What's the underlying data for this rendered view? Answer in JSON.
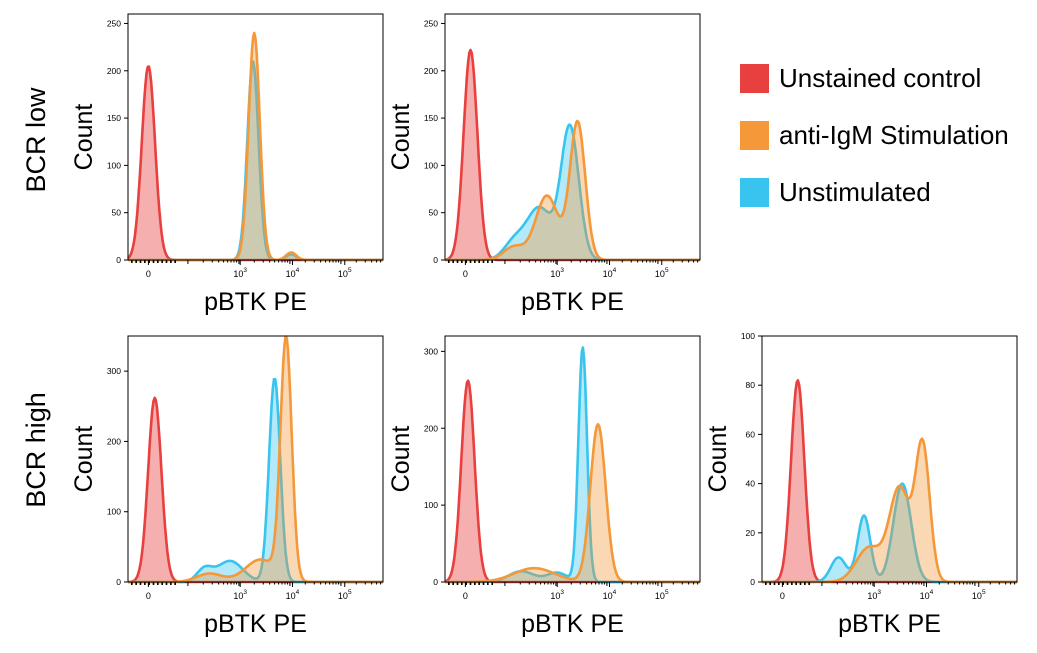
{
  "colors": {
    "unstained": "#e8403e",
    "stim": "#f4983a",
    "unstim": "#38c4ef",
    "axis": "#000000"
  },
  "legend": [
    {
      "label": "Unstained control",
      "color": "#e8403e"
    },
    {
      "label": "anti-IgM Stimulation",
      "color": "#f4983a"
    },
    {
      "label": "Unstimulated",
      "color": "#38c4ef"
    }
  ],
  "row_labels": [
    "BCR low",
    "BCR high"
  ],
  "chart_data": [
    {
      "type": "area",
      "row": 0,
      "col": 0,
      "xlabel": "pBTK PE",
      "ylabel": "Count",
      "ylim": [
        0,
        260
      ],
      "yticks": [
        0,
        50,
        100,
        150,
        200,
        250
      ],
      "xticks": [
        "0",
        "10^3",
        "10^4",
        "10^5"
      ],
      "series": [
        {
          "name": "Unstained control",
          "peaks": [
            {
              "center": 0.08,
              "height": 205,
              "width": 0.026
            }
          ]
        },
        {
          "name": "anti-IgM Stimulation",
          "peaks": [
            {
              "center": 0.495,
              "height": 240,
              "width": 0.022
            },
            {
              "center": 0.64,
              "height": 8,
              "width": 0.02
            }
          ]
        },
        {
          "name": "Unstimulated",
          "peaks": [
            {
              "center": 0.49,
              "height": 210,
              "width": 0.022
            },
            {
              "center": 0.64,
              "height": 6,
              "width": 0.02
            }
          ]
        }
      ]
    },
    {
      "type": "area",
      "row": 0,
      "col": 1,
      "xlabel": "pBTK PE",
      "ylabel": "Count",
      "ylim": [
        0,
        260
      ],
      "yticks": [
        0,
        50,
        100,
        150,
        200,
        250
      ],
      "xticks": [
        "0",
        "10^3",
        "10^4",
        "10^5"
      ],
      "series": [
        {
          "name": "Unstained control",
          "peaks": [
            {
              "center": 0.1,
              "height": 222,
              "width": 0.027
            }
          ]
        },
        {
          "name": "anti-IgM Stimulation",
          "peaks": [
            {
              "center": 0.52,
              "height": 145,
              "width": 0.03
            },
            {
              "center": 0.4,
              "height": 68,
              "width": 0.045
            },
            {
              "center": 0.27,
              "height": 14,
              "width": 0.04
            }
          ]
        },
        {
          "name": "Unstimulated",
          "peaks": [
            {
              "center": 0.49,
              "height": 140,
              "width": 0.035
            },
            {
              "center": 0.37,
              "height": 55,
              "width": 0.05
            },
            {
              "center": 0.27,
              "height": 18,
              "width": 0.04
            }
          ]
        }
      ]
    },
    {
      "type": "area",
      "row": 1,
      "col": 0,
      "xlabel": "pBTK PE",
      "ylabel": "Count",
      "ylim": [
        0,
        350
      ],
      "yticks": [
        0,
        100,
        200,
        300
      ],
      "xticks": [
        "0",
        "10^3",
        "10^4",
        "10^5"
      ],
      "series": [
        {
          "name": "Unstained control",
          "peaks": [
            {
              "center": 0.105,
              "height": 262,
              "width": 0.026
            }
          ]
        },
        {
          "name": "anti-IgM Stimulation",
          "peaks": [
            {
              "center": 0.62,
              "height": 342,
              "width": 0.022
            },
            {
              "center": 0.52,
              "height": 32,
              "width": 0.06
            },
            {
              "center": 0.32,
              "height": 12,
              "width": 0.05
            }
          ]
        },
        {
          "name": "Unstimulated",
          "peaks": [
            {
              "center": 0.575,
              "height": 290,
              "width": 0.022
            },
            {
              "center": 0.4,
              "height": 30,
              "width": 0.05
            },
            {
              "center": 0.3,
              "height": 18,
              "width": 0.03
            }
          ]
        }
      ]
    },
    {
      "type": "area",
      "row": 1,
      "col": 1,
      "xlabel": "pBTK PE",
      "ylabel": "Count",
      "ylim": [
        0,
        320
      ],
      "yticks": [
        0,
        100,
        200,
        300
      ],
      "xticks": [
        "0",
        "10^3",
        "10^4",
        "10^5"
      ],
      "series": [
        {
          "name": "Unstained control",
          "peaks": [
            {
              "center": 0.09,
              "height": 262,
              "width": 0.026
            }
          ]
        },
        {
          "name": "anti-IgM Stimulation",
          "peaks": [
            {
              "center": 0.6,
              "height": 205,
              "width": 0.03
            },
            {
              "center": 0.35,
              "height": 18,
              "width": 0.08
            }
          ]
        },
        {
          "name": "Unstimulated",
          "peaks": [
            {
              "center": 0.54,
              "height": 305,
              "width": 0.017
            },
            {
              "center": 0.3,
              "height": 14,
              "width": 0.05
            },
            {
              "center": 0.44,
              "height": 12,
              "width": 0.04
            }
          ]
        }
      ]
    },
    {
      "type": "area",
      "row": 1,
      "col": 2,
      "xlabel": "pBTK PE",
      "ylabel": "Count",
      "ylim": [
        0,
        100
      ],
      "yticks": [
        0,
        20,
        40,
        60,
        80,
        100
      ],
      "xticks": [
        "0",
        "10^3",
        "10^4",
        "10^5"
      ],
      "series": [
        {
          "name": "Unstained control",
          "peaks": [
            {
              "center": 0.14,
              "height": 82,
              "width": 0.026
            }
          ]
        },
        {
          "name": "anti-IgM Stimulation",
          "peaks": [
            {
              "center": 0.63,
              "height": 55,
              "width": 0.028
            },
            {
              "center": 0.54,
              "height": 38,
              "width": 0.04
            },
            {
              "center": 0.42,
              "height": 14,
              "width": 0.05
            }
          ]
        },
        {
          "name": "Unstimulated",
          "peaks": [
            {
              "center": 0.4,
              "height": 27,
              "width": 0.025
            },
            {
              "center": 0.55,
              "height": 40,
              "width": 0.035
            },
            {
              "center": 0.3,
              "height": 10,
              "width": 0.03
            }
          ]
        }
      ]
    }
  ]
}
